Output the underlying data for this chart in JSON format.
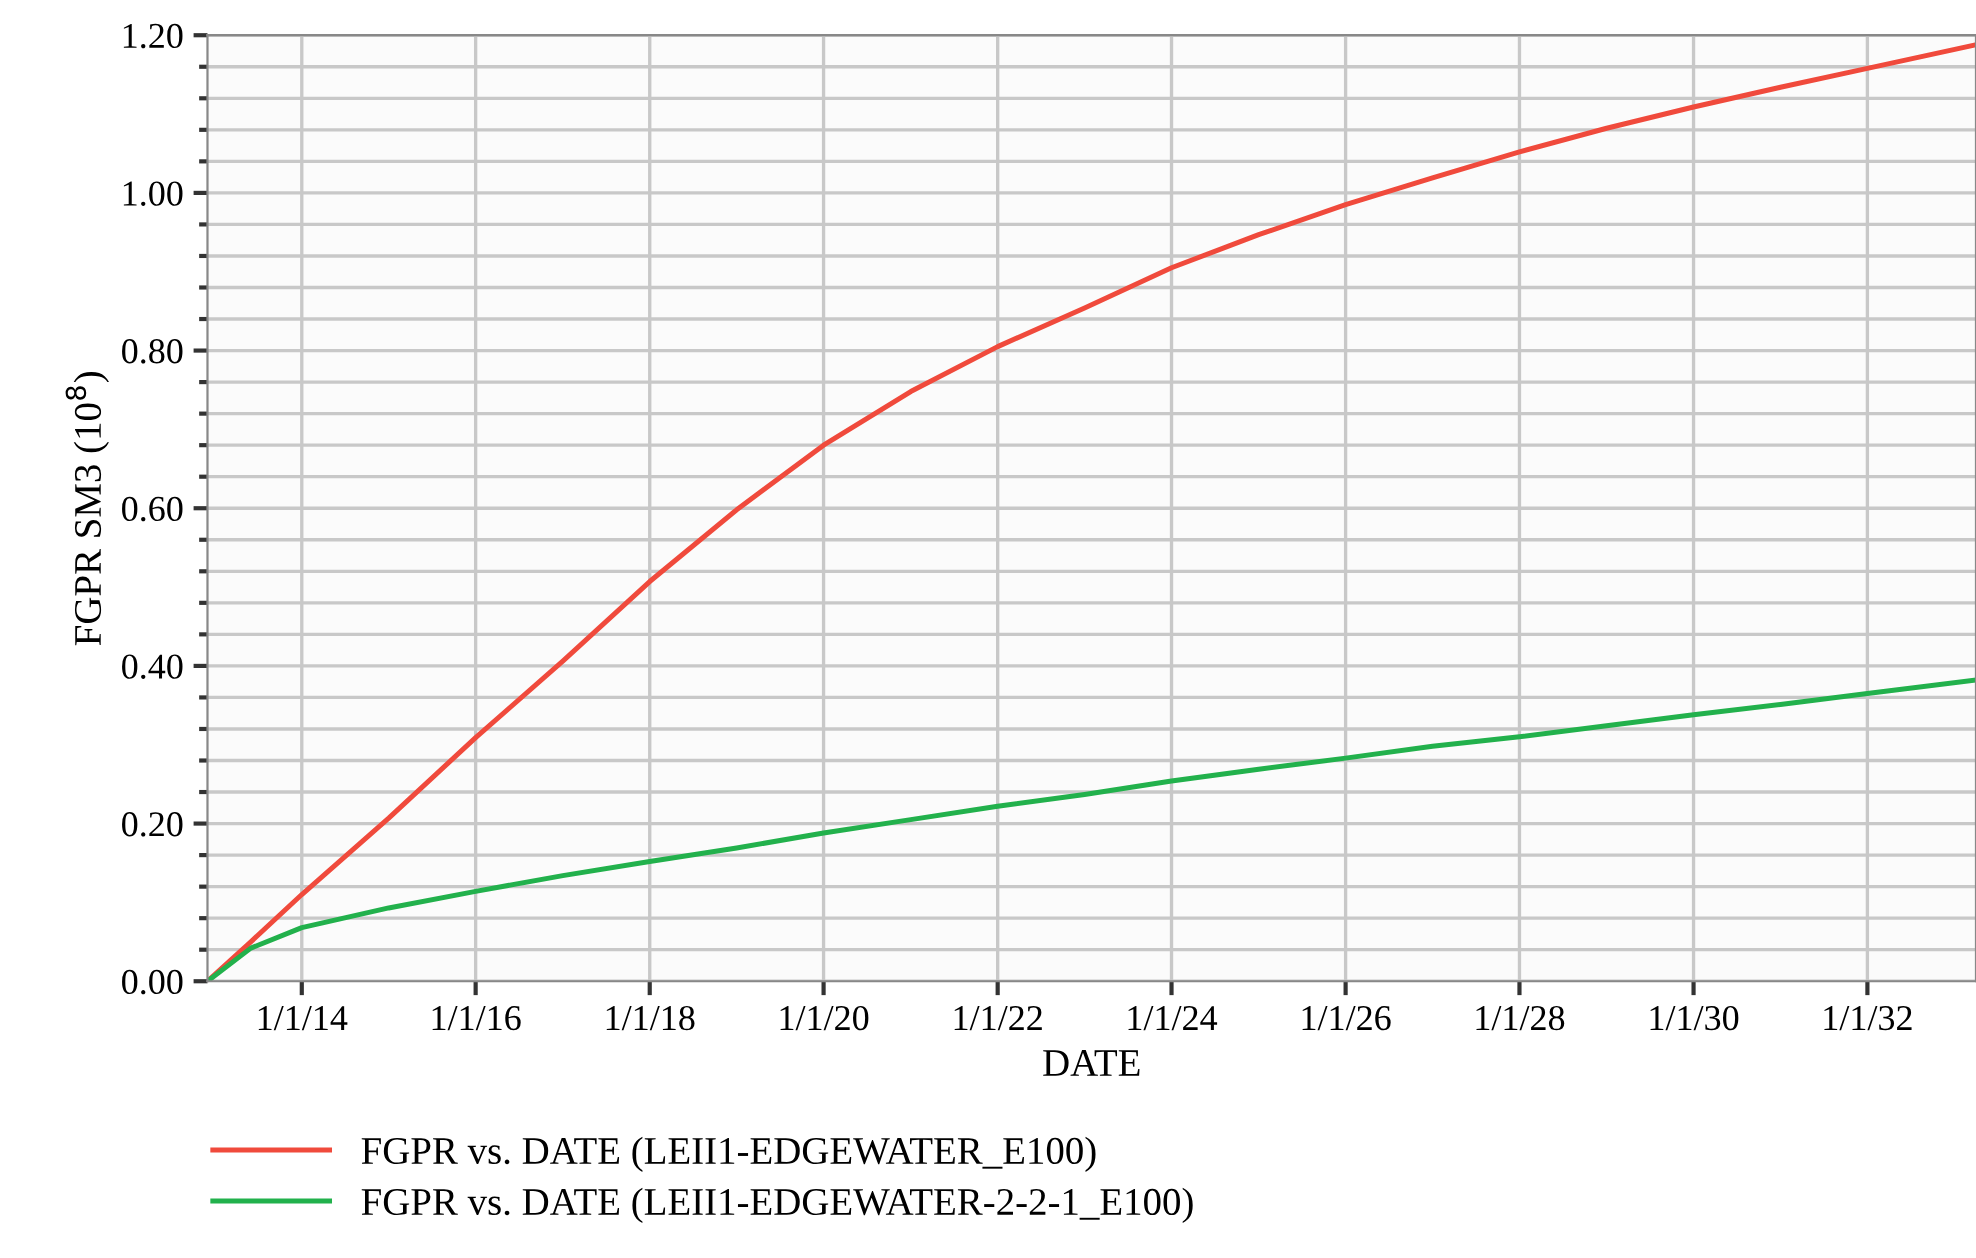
{
  "chart_data": {
    "type": "line",
    "xlabel": "DATE",
    "ylabel": "FGPR SM3 (10$^{8}$)",
    "xlim": [
      "2012-12",
      "2033-04"
    ],
    "xticks": [
      {
        "value": "2014-01-01",
        "label": "1/1/14"
      },
      {
        "value": "2016-01-01",
        "label": "1/1/16"
      },
      {
        "value": "2018-01-01",
        "label": "1/1/18"
      },
      {
        "value": "2020-01-01",
        "label": "1/1/20"
      },
      {
        "value": "2022-01-01",
        "label": "1/1/22"
      },
      {
        "value": "2024-01-01",
        "label": "1/1/24"
      },
      {
        "value": "2026-01-01",
        "label": "1/1/26"
      },
      {
        "value": "2028-01-01",
        "label": "1/1/28"
      },
      {
        "value": "2030-01-01",
        "label": "1/1/30"
      },
      {
        "value": "2032-01-01",
        "label": "1/1/32"
      }
    ],
    "ylim": [
      0,
      1.2
    ],
    "yticks": [
      {
        "value": 0,
        "label": "0.00"
      },
      {
        "value": 0.04,
        "label": null
      },
      {
        "value": 0.08,
        "label": null
      },
      {
        "value": 0.12,
        "label": null
      },
      {
        "value": 0.16,
        "label": null
      },
      {
        "value": 0.2,
        "label": "0.20"
      },
      {
        "value": 0.24,
        "label": null
      },
      {
        "value": 0.28,
        "label": null
      },
      {
        "value": 0.32,
        "label": null
      },
      {
        "value": 0.36,
        "label": null
      },
      {
        "value": 0.4,
        "label": "0.40"
      },
      {
        "value": 0.44,
        "label": null
      },
      {
        "value": 0.48,
        "label": null
      },
      {
        "value": 0.52,
        "label": null
      },
      {
        "value": 0.56,
        "label": null
      },
      {
        "value": 0.6,
        "label": "0.60"
      },
      {
        "value": 0.64,
        "label": null
      },
      {
        "value": 0.68,
        "label": null
      },
      {
        "value": 0.72,
        "label": null
      },
      {
        "value": 0.76,
        "label": null
      },
      {
        "value": 0.8,
        "label": "0.80"
      },
      {
        "value": 0.84,
        "label": null
      },
      {
        "value": 0.88,
        "label": null
      },
      {
        "value": 0.92,
        "label": null
      },
      {
        "value": 0.96,
        "label": null
      },
      {
        "value": 1.0,
        "label": "1.00"
      },
      {
        "value": 1.04,
        "label": null
      },
      {
        "value": 1.08,
        "label": null
      },
      {
        "value": 1.12,
        "label": null
      },
      {
        "value": 1.16,
        "label": null
      },
      {
        "value": 1.2,
        "label": "1.20"
      }
    ],
    "x": [
      "2012-12",
      "2013-06",
      "2014-01",
      "2015-01",
      "2016-01",
      "2017-01",
      "2018-01",
      "2019-01",
      "2020-01",
      "2021-01",
      "2022-01",
      "2023-01",
      "2024-01",
      "2025-01",
      "2026-01",
      "2027-01",
      "2028-01",
      "2029-01",
      "2030-01",
      "2031-01",
      "2032-01",
      "2033-04"
    ],
    "series": [
      {
        "name": "FGPR vs. DATE (LEII1-EDGEWATER_E100)",
        "color": "#f04a3c",
        "values": [
          0,
          0.05,
          0.11,
          0.207,
          0.309,
          0.406,
          0.507,
          0.598,
          0.68,
          0.748,
          0.805,
          0.854,
          0.905,
          0.947,
          0.985,
          1.019,
          1.052,
          1.082,
          1.109,
          1.134,
          1.158,
          1.188
        ]
      },
      {
        "name": "FGPR vs. DATE (LEII1-EDGEWATER-2-2-1_E100)",
        "color": "#22b14c",
        "values": [
          0,
          0.042,
          0.068,
          0.093,
          0.114,
          0.134,
          0.152,
          0.169,
          0.188,
          0.205,
          0.222,
          0.237,
          0.254,
          0.269,
          0.283,
          0.298,
          0.31,
          0.324,
          0.338,
          0.351,
          0.365,
          0.382
        ]
      }
    ],
    "grid": true,
    "legend": "bottom",
    "marker": "none",
    "line_style": "solid"
  }
}
